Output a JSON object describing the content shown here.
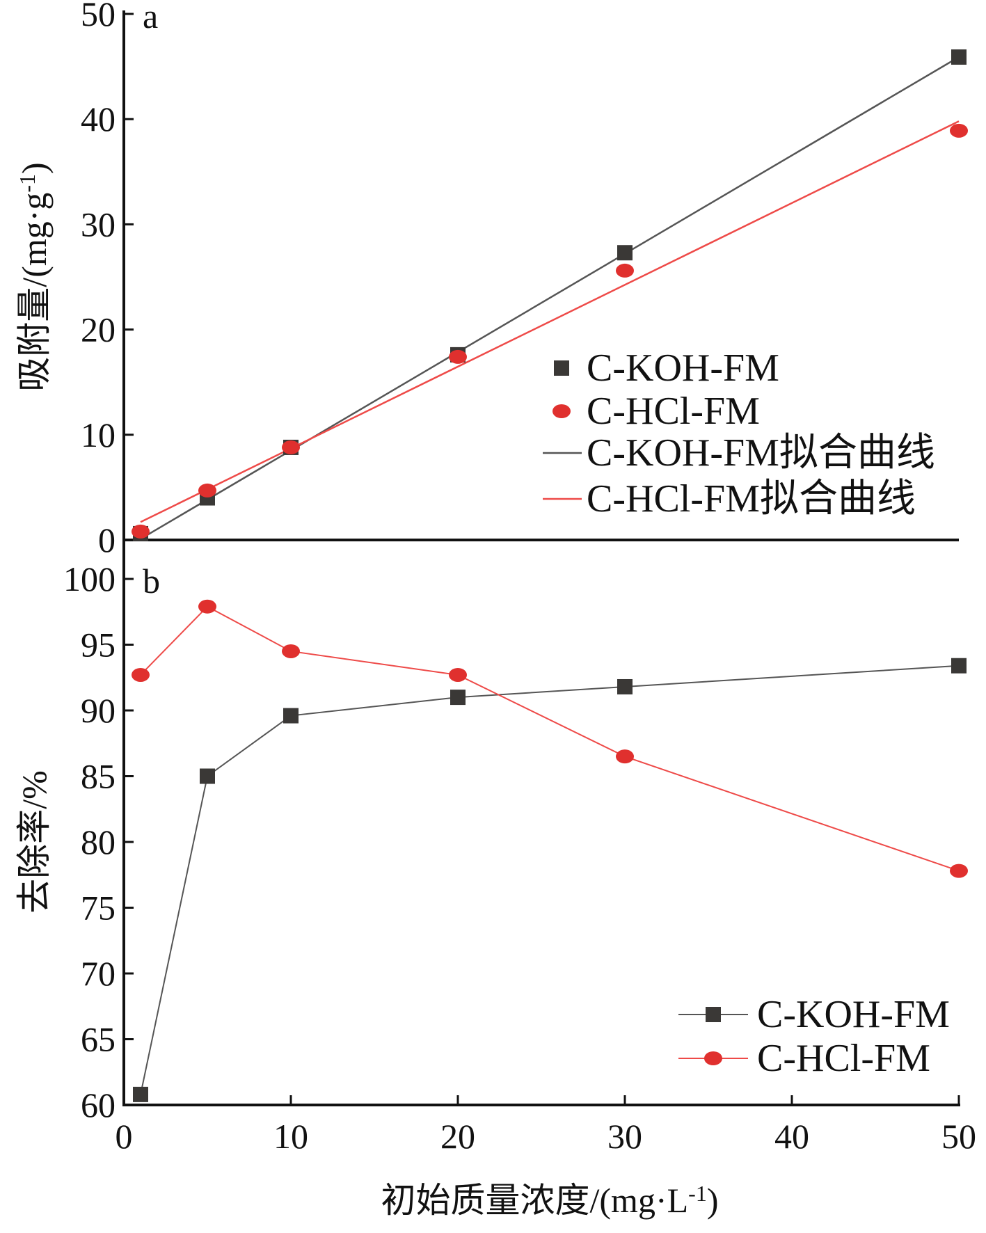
{
  "colors": {
    "koh": "#3a3836",
    "hcl": "#e0302e",
    "koh_fit": "#555555",
    "hcl_fit": "#ee4a48",
    "axis": "#111111"
  },
  "chart_data": [
    {
      "type": "scatter",
      "panel": "a",
      "ylabel": "吸附量/(mg·g-1)",
      "ylabel_main": "吸附量/(mg·g",
      "ylabel_sup": "-1",
      "ylabel_close": ")",
      "xlim": [
        0,
        50
      ],
      "ylim": [
        0,
        50
      ],
      "yticks": [
        0,
        10,
        20,
        30,
        40,
        50
      ],
      "legend_position": "center-right",
      "series": [
        {
          "name": "C-KOH-FM",
          "marker": "square",
          "x": [
            1,
            5,
            10,
            20,
            30,
            50
          ],
          "y": [
            0.6,
            4.0,
            8.8,
            17.6,
            27.3,
            45.9
          ]
        },
        {
          "name": "C-HCl-FM",
          "marker": "circle",
          "x": [
            1,
            5,
            10,
            20,
            30,
            50
          ],
          "y": [
            0.8,
            4.7,
            8.8,
            17.4,
            25.6,
            38.9
          ]
        },
        {
          "name": "C-KOH-FM拟合曲线",
          "style": "line",
          "x": [
            1,
            50
          ],
          "y": [
            0.1,
            45.9
          ]
        },
        {
          "name": "C-HCl-FM拟合曲线",
          "style": "line",
          "x": [
            1,
            50
          ],
          "y": [
            1.7,
            39.8
          ]
        }
      ]
    },
    {
      "type": "line",
      "panel": "b",
      "ylabel": "去除率/%",
      "xlabel": "初始质量浓度/(mg·L-1)",
      "xlabel_main": "初始质量浓度/(mg·L",
      "xlabel_sup": "-1",
      "xlabel_close": ")",
      "xlim": [
        0,
        50
      ],
      "ylim": [
        60,
        100
      ],
      "xticks": [
        0,
        10,
        20,
        30,
        40,
        50
      ],
      "yticks": [
        60,
        65,
        70,
        75,
        80,
        85,
        90,
        95,
        100
      ],
      "legend_position": "bottom-right",
      "series": [
        {
          "name": "C-KOH-FM",
          "marker": "square",
          "x": [
            1,
            5,
            10,
            20,
            30,
            50
          ],
          "y": [
            60.8,
            85.0,
            89.6,
            91.0,
            91.8,
            93.4
          ]
        },
        {
          "name": "C-HCl-FM",
          "marker": "circle",
          "x": [
            1,
            5,
            10,
            20,
            30,
            50
          ],
          "y": [
            92.7,
            97.9,
            94.5,
            92.7,
            86.5,
            77.8
          ]
        }
      ]
    }
  ]
}
